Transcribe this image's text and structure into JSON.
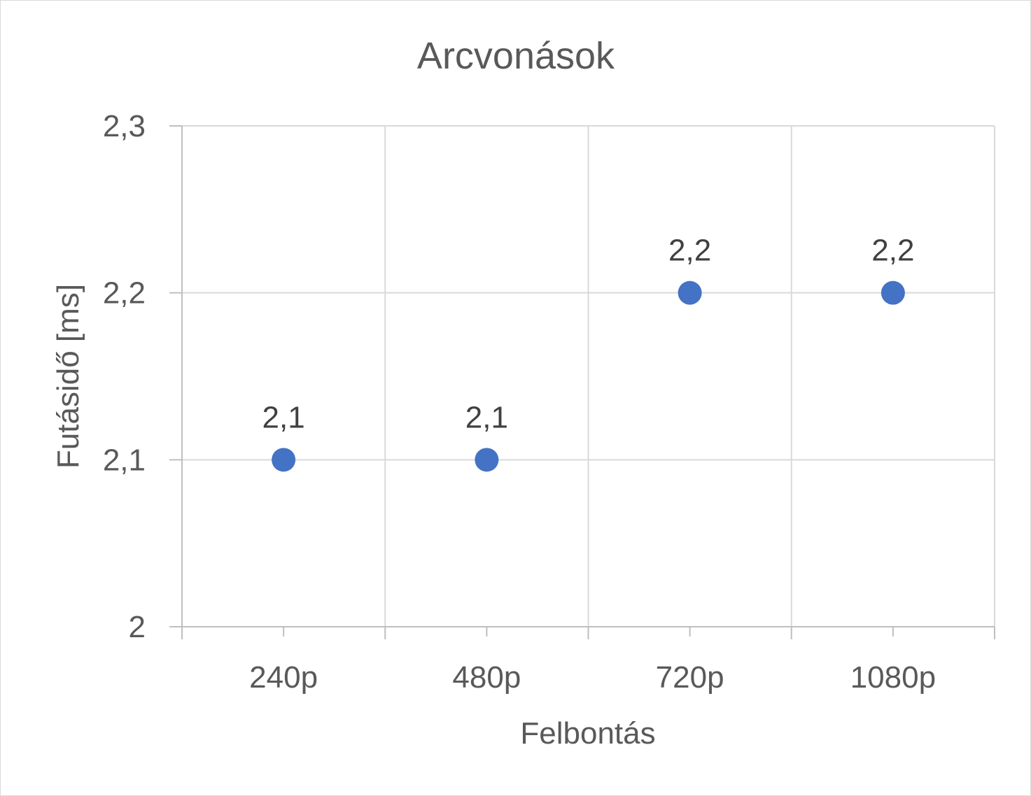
{
  "chart_data": {
    "type": "scatter",
    "title": "Arcvonások",
    "xlabel": "Felbontás",
    "ylabel": "Futásidő [ms]",
    "categories": [
      "240p",
      "480p",
      "720p",
      "1080p"
    ],
    "series": [
      {
        "values": [
          2.1,
          2.1,
          2.2,
          2.2
        ],
        "data_labels": [
          "2,1",
          "2,1",
          "2,2",
          "2,2"
        ],
        "color": "#4472c4"
      }
    ],
    "ylim": [
      2.0,
      2.3
    ],
    "yticks": [
      2.0,
      2.1,
      2.2,
      2.3
    ],
    "ytick_labels": [
      "2",
      "2,1",
      "2,2",
      "2,3"
    ],
    "grid": true,
    "legend": "none"
  }
}
